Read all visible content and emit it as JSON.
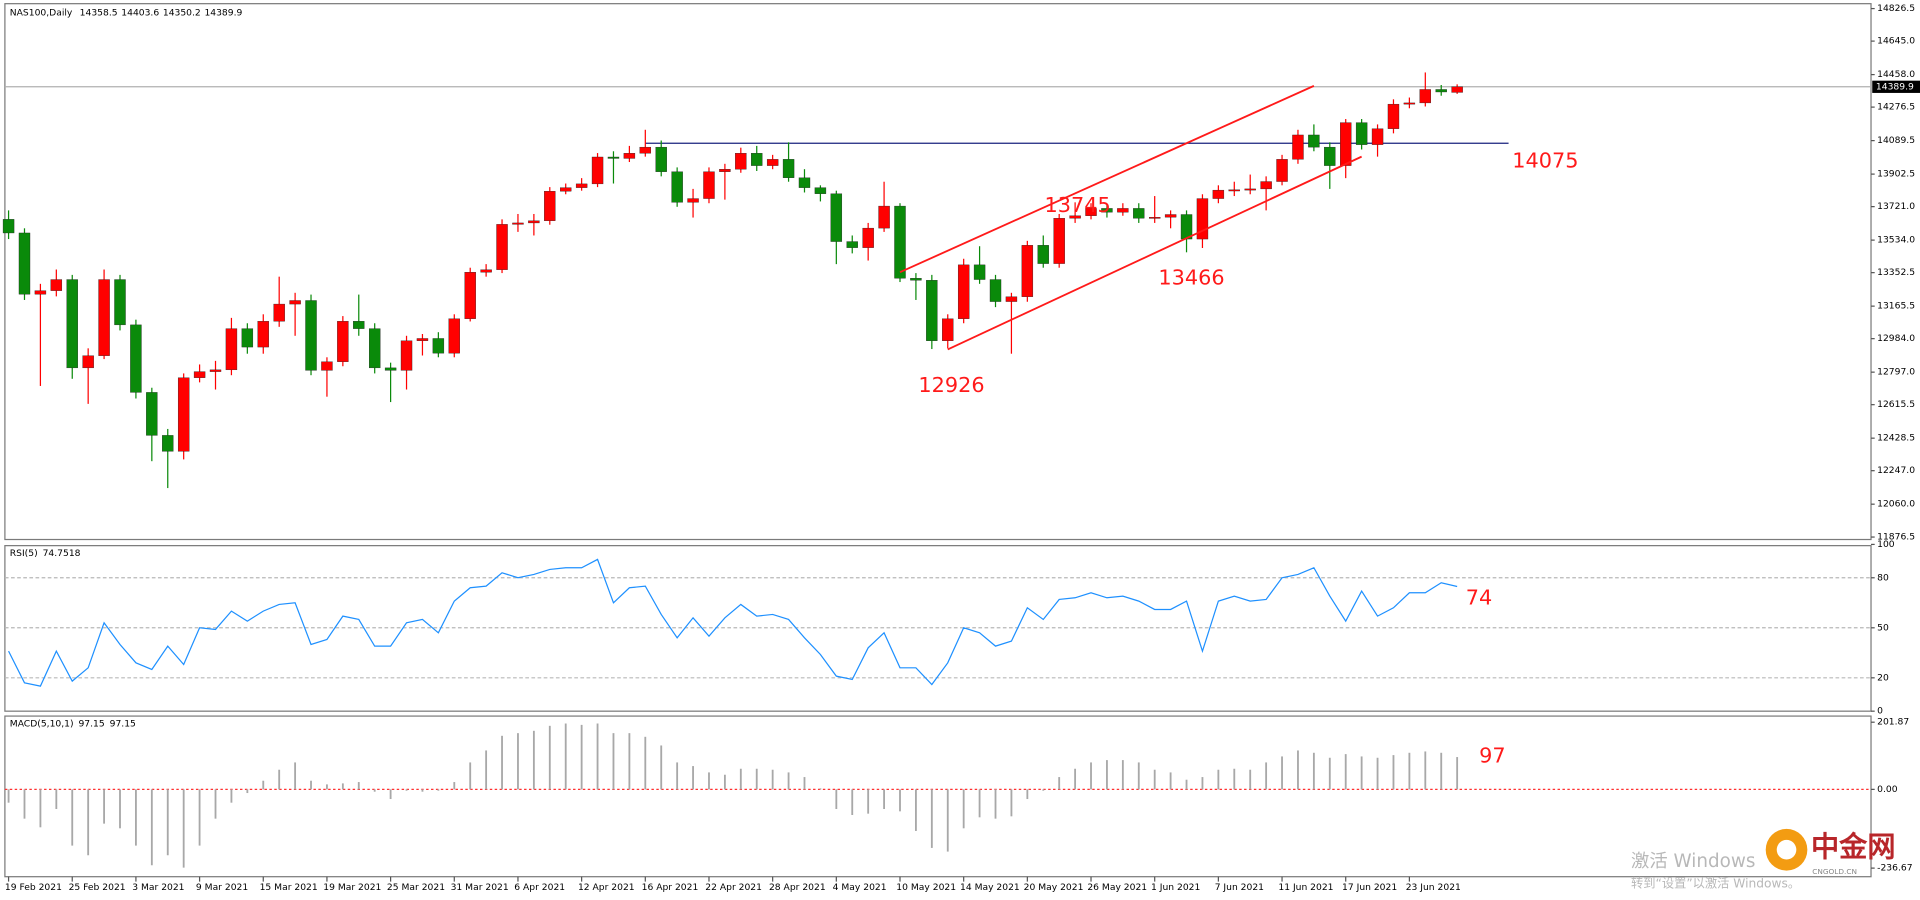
{
  "chart_data": [
    {
      "type": "candlestick",
      "title": "NAS100,Daily",
      "categories": [
        "19 Feb 2021",
        null,
        null,
        null,
        "25 Feb 2021",
        null,
        null,
        null,
        "3 Mar 2021",
        null,
        null,
        null,
        "9 Mar 2021",
        null,
        null,
        null,
        "15 Mar 2021",
        null,
        null,
        null,
        "19 Mar 2021",
        null,
        null,
        null,
        "25 Mar 2021",
        null,
        null,
        null,
        "31 Mar 2021",
        null,
        null,
        null,
        "6 Apr 2021",
        null,
        null,
        null,
        "12 Apr 2021",
        null,
        null,
        null,
        "16 Apr 2021",
        null,
        null,
        null,
        "22 Apr 2021",
        null,
        null,
        null,
        "28 Apr 2021",
        null,
        null,
        null,
        "4 May 2021",
        null,
        null,
        null,
        "10 May 2021",
        null,
        null,
        null,
        "14 May 2021",
        null,
        null,
        null,
        "20 May 2021",
        null,
        null,
        null,
        "26 May 2021",
        null,
        null,
        null,
        "1 Jun 2021",
        null,
        null,
        null,
        "7 Jun 2021",
        null,
        null,
        null,
        "11 Jun 2021",
        null,
        null,
        null,
        "17 Jun 2021",
        null,
        null,
        null,
        "23 Jun 2021",
        null,
        null,
        null
      ],
      "open": [
        13650,
        13574,
        13232,
        13252,
        13314,
        12821,
        12889,
        13314,
        13061,
        12684,
        12444,
        12355,
        12766,
        12800,
        12810,
        13040,
        12937,
        13081,
        13177,
        13197,
        12807,
        12855,
        13081,
        13040,
        12821,
        12807,
        12972,
        12985,
        12903,
        13095,
        13355,
        13369,
        13622,
        13630,
        13642,
        13807,
        13827,
        13848,
        13998,
        13990,
        14019,
        14053,
        13916,
        13745,
        13766,
        13916,
        13930,
        14019,
        13950,
        13985,
        13882,
        13827,
        13793,
        13526,
        13492,
        13601,
        13724,
        13321,
        13310,
        12972,
        13095,
        13396,
        13314,
        13191,
        13218,
        13505,
        13403,
        13656,
        13670,
        13711,
        13690,
        13711,
        13656,
        13662,
        13677,
        13540,
        13766,
        13813,
        13815,
        13820,
        13861,
        13985,
        14121,
        14053,
        13950,
        14190,
        14067,
        14156,
        14293,
        14300,
        14375,
        14358.5
      ],
      "high": [
        13700,
        13600,
        13290,
        13370,
        13340,
        12930,
        13370,
        13340,
        13090,
        12710,
        12480,
        12790,
        12840,
        12860,
        13100,
        13070,
        13120,
        13330,
        13240,
        13230,
        12880,
        13110,
        13230,
        13070,
        12850,
        13000,
        13010,
        13020,
        13120,
        13380,
        13400,
        13650,
        13680,
        13680,
        13830,
        13850,
        13880,
        14020,
        14030,
        14060,
        14150,
        14090,
        13940,
        13820,
        13940,
        13960,
        14050,
        14060,
        14010,
        14080,
        13930,
        13840,
        13810,
        13560,
        13630,
        13860,
        13740,
        13350,
        13340,
        13120,
        13430,
        13500,
        13340,
        13240,
        13530,
        13560,
        13680,
        13745,
        13740,
        13730,
        13740,
        13740,
        13780,
        13700,
        13700,
        13790,
        13840,
        13860,
        13900,
        13890,
        14010,
        14150,
        14180,
        14080,
        14210,
        14210,
        14180,
        14320,
        14330,
        14470,
        14400,
        14403.6
      ],
      "low": [
        13540,
        13200,
        12720,
        13220,
        12760,
        12620,
        12870,
        13030,
        12650,
        12300,
        12150,
        12310,
        12740,
        12700,
        12780,
        12900,
        12900,
        13050,
        13000,
        12780,
        12660,
        12830,
        13000,
        12790,
        12630,
        12700,
        12890,
        12880,
        12880,
        13080,
        13330,
        13350,
        13580,
        13560,
        13620,
        13790,
        13810,
        13830,
        13850,
        13970,
        14000,
        13890,
        13720,
        13660,
        13740,
        13760,
        13910,
        13920,
        13930,
        13860,
        13800,
        13750,
        13400,
        13460,
        13420,
        13580,
        13300,
        13200,
        12926,
        12930,
        13070,
        13290,
        13160,
        12900,
        13190,
        13380,
        13380,
        13630,
        13650,
        13660,
        13670,
        13630,
        13630,
        13600,
        13466,
        13490,
        13740,
        13780,
        13790,
        13700,
        13840,
        13960,
        14030,
        13820,
        13880,
        14040,
        14000,
        14130,
        14270,
        14280,
        14340,
        14350.2
      ],
      "close": [
        13574,
        13232,
        13252,
        13314,
        12821,
        12889,
        13314,
        13061,
        12684,
        12444,
        12355,
        12766,
        12800,
        12810,
        13040,
        12937,
        13081,
        13177,
        13197,
        12807,
        12855,
        13081,
        13040,
        12821,
        12807,
        12972,
        12985,
        12903,
        13095,
        13355,
        13369,
        13622,
        13630,
        13642,
        13807,
        13827,
        13848,
        13998,
        13990,
        14019,
        14053,
        13916,
        13745,
        13766,
        13916,
        13930,
        14019,
        13950,
        13985,
        13882,
        13827,
        13793,
        13526,
        13492,
        13601,
        13724,
        13321,
        13310,
        12972,
        13095,
        13396,
        13314,
        13191,
        13218,
        13505,
        13403,
        13656,
        13670,
        13711,
        13690,
        13711,
        13656,
        13662,
        13677,
        13540,
        13766,
        13813,
        13815,
        13820,
        13861,
        13985,
        14121,
        14053,
        13950,
        14190,
        14067,
        14156,
        14293,
        14300,
        14375,
        14361,
        14389.9
      ],
      "up_color": "#ff0000",
      "down_color": "#0a8a0a",
      "ylim": [
        11876.5,
        14826.5
      ],
      "yticks": [
        11876.5,
        {
          "value": 12060,
          "label": "12060.0"
        },
        {
          "value": 12247,
          "label": "12247.0"
        },
        12428.5,
        12615.5,
        {
          "value": 12797,
          "label": "12797.0"
        },
        {
          "value": 12984,
          "label": "12984.0"
        },
        13165.5,
        13352.5,
        {
          "value": 13534,
          "label": "13534.0"
        },
        {
          "value": 13721,
          "label": "13721.0"
        },
        13902.5,
        14089.5,
        14276.5,
        {
          "value": 14458,
          "label": "14458.0"
        },
        {
          "value": 14645,
          "label": "14645.0"
        },
        14826.5
      ],
      "levels": [
        14075
      ],
      "trend_lines": [
        {
          "x": [
            56,
            82
          ],
          "y": [
            13355,
            14395
          ]
        },
        {
          "x": [
            59,
            85
          ],
          "y": [
            12924,
            14000
          ]
        }
      ]
    },
    {
      "type": "line",
      "title": "RSI(5)",
      "color": "#1e90ff",
      "values": [
        36,
        17,
        15,
        36,
        18,
        26,
        53,
        40,
        29,
        25,
        39,
        28,
        50,
        49,
        60,
        54,
        60,
        64,
        65,
        40,
        43,
        57,
        55,
        39,
        39,
        53,
        55,
        47,
        66,
        74,
        75,
        83,
        80,
        82,
        85,
        86,
        86,
        91,
        65,
        74,
        75,
        58,
        44,
        56,
        45,
        56,
        64,
        57,
        58,
        55,
        44,
        34,
        21,
        19,
        38,
        47,
        26,
        26,
        16,
        29,
        50,
        47,
        39,
        42,
        62,
        55,
        67,
        68,
        71,
        68,
        69,
        66,
        61,
        61,
        66,
        36,
        66,
        69,
        66,
        67,
        80,
        82,
        86,
        69,
        54,
        72,
        57,
        62,
        71,
        71,
        77,
        74.7518
      ],
      "ylim": [
        0,
        100
      ],
      "yticks": [
        0,
        20,
        50,
        80,
        100
      ],
      "levels": [
        20,
        50,
        80
      ],
      "annotation": 74
    },
    {
      "type": "histogram",
      "title": "MACD(5,10,1)",
      "color": "#a8a8a8",
      "values": [
        -40,
        -88,
        -114,
        -59,
        -169,
        -198,
        -103,
        -117,
        -169,
        -228,
        -198,
        -235,
        -169,
        -88,
        -40,
        -11,
        26,
        59,
        81,
        26,
        15,
        18,
        22,
        -7,
        -29,
        -4,
        -7,
        -4,
        22,
        81,
        117,
        161,
        169,
        176,
        191,
        198,
        194,
        198,
        169,
        169,
        158,
        132,
        81,
        70,
        51,
        44,
        62,
        62,
        59,
        51,
        37,
        3,
        -59,
        -77,
        -73,
        -59,
        -66,
        -125,
        -176,
        -187,
        -117,
        -84,
        -88,
        -81,
        -29,
        -4,
        37,
        62,
        81,
        88,
        88,
        81,
        59,
        51,
        29,
        37,
        59,
        62,
        59,
        81,
        99,
        117,
        110,
        95,
        106,
        99,
        95,
        103,
        110,
        114,
        110,
        97.15
      ],
      "signal": 97.15,
      "ylim": [
        -236.67,
        201.87
      ],
      "yticks": [
        -236.67,
        {
          "value": 0,
          "label": "0.00"
        },
        201.87
      ],
      "annotation": 97
    }
  ],
  "watermark": {
    "line1": "激活 Windows",
    "line2": "转到“设置”以激活 Windows。",
    "logo": "中金网",
    "logo_sub": "CNGOLD.CN"
  }
}
